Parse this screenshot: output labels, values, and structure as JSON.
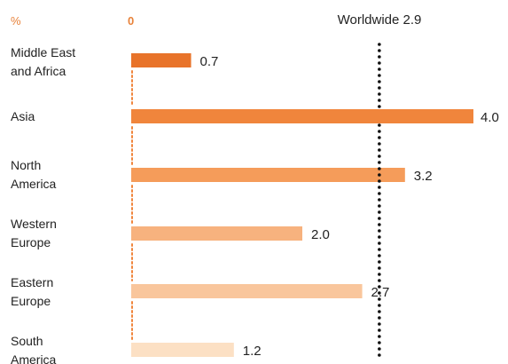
{
  "chart_data": {
    "type": "bar",
    "orientation": "horizontal",
    "unit_label": "%",
    "zero_label": "0",
    "categories": [
      [
        "Middle East",
        "and Africa"
      ],
      [
        "Asia"
      ],
      [
        "North",
        "America"
      ],
      [
        "Western",
        "Europe"
      ],
      [
        "Eastern",
        "Europe"
      ],
      [
        "South",
        "America"
      ]
    ],
    "values": [
      0.7,
      4.0,
      3.2,
      2.0,
      2.7,
      1.2
    ],
    "value_labels": [
      "0.7",
      "4.0",
      "3.2",
      "2.0",
      "2.7",
      "1.2"
    ],
    "bar_colors": [
      "#e8732a",
      "#f0853c",
      "#f59c5a",
      "#f7b27e",
      "#f9c69c",
      "#fce0c4"
    ],
    "reference_line": {
      "value": 2.9,
      "label": "Worldwide 2.9"
    },
    "xlim": [
      0,
      4.0
    ],
    "grid": false,
    "legend": "none"
  }
}
